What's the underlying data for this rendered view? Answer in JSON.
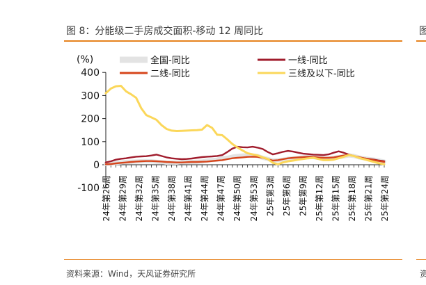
{
  "title": "图 8：分能级二手房成交面积-移动 12 周同比",
  "right_stub": "图",
  "source": "资料来源：Wind，天风证券研究所",
  "right_stub_bottom": "资",
  "colors": {
    "national": "#e3e3e3",
    "tier1": "#a01c2c",
    "tier2": "#d6451b",
    "tier3": "#fbd75a",
    "rule": "#e6821e"
  },
  "chart_data": {
    "type": "line",
    "unit_label": "(%)",
    "ylim": [
      -100,
      400
    ],
    "yticks": [
      -100,
      0,
      100,
      200,
      300,
      400
    ],
    "x_tick_labels": [
      "24年第26周",
      "24年第29周",
      "24年第32周",
      "24年第35周",
      "24年第38周",
      "24年第41周",
      "24年第44周",
      "24年第47周",
      "24年第50周",
      "24年第53周",
      "25年第3周",
      "25年第6周",
      "25年第9周",
      "25年第12周",
      "25年第15周",
      "25年第18周",
      "25年第21周",
      "25年第24周"
    ],
    "legend": [
      {
        "key": "national",
        "label": "全国-同比"
      },
      {
        "key": "tier1",
        "label": "一线-同比"
      },
      {
        "key": "tier2",
        "label": "二线-同比"
      },
      {
        "key": "tier3",
        "label": "三线及以下-同比"
      }
    ],
    "series": [
      {
        "key": "national",
        "name": "全国-同比",
        "color": "#e3e3e3",
        "values": [
          4,
          5,
          8,
          10,
          12,
          13,
          14,
          15,
          16,
          15,
          13,
          11,
          9,
          10,
          9,
          11,
          12,
          12,
          13,
          14,
          18,
          20,
          22,
          28,
          30,
          35,
          38,
          40,
          41,
          40,
          38,
          30,
          25,
          18,
          20,
          22,
          26,
          28,
          30,
          32,
          34,
          33,
          30,
          28,
          28,
          30,
          33,
          36,
          40,
          38,
          32,
          28,
          25,
          22,
          18,
          14
        ]
      },
      {
        "key": "tier1",
        "name": "一线-同比",
        "color": "#a01c2c",
        "values": [
          10,
          15,
          22,
          26,
          28,
          32,
          35,
          36,
          37,
          40,
          44,
          38,
          32,
          28,
          26,
          24,
          25,
          27,
          30,
          33,
          35,
          36,
          38,
          42,
          55,
          70,
          78,
          76,
          75,
          78,
          74,
          68,
          55,
          45,
          50,
          56,
          60,
          57,
          52,
          48,
          46,
          44,
          43,
          42,
          45,
          52,
          58,
          52,
          44,
          38,
          32,
          28,
          25,
          22,
          18,
          15
        ]
      },
      {
        "key": "tier2",
        "name": "二线-同比",
        "color": "#d6451b",
        "values": [
          2,
          3,
          6,
          8,
          10,
          12,
          14,
          15,
          16,
          16,
          15,
          14,
          12,
          11,
          10,
          10,
          11,
          12,
          12,
          13,
          14,
          16,
          18,
          20,
          24,
          28,
          30,
          32,
          34,
          35,
          34,
          30,
          24,
          18,
          20,
          24,
          28,
          30,
          32,
          33,
          35,
          34,
          32,
          30,
          30,
          32,
          36,
          40,
          42,
          38,
          33,
          28,
          24,
          20,
          16,
          12
        ]
      },
      {
        "key": "tier3",
        "name": "三线及以下-同比",
        "color": "#fbd75a",
        "values": [
          310,
          330,
          340,
          342,
          318,
          305,
          290,
          245,
          215,
          205,
          195,
          172,
          155,
          148,
          146,
          147,
          148,
          149,
          150,
          152,
          172,
          160,
          130,
          128,
          110,
          90,
          75,
          62,
          50,
          45,
          40,
          32,
          25,
          8,
          2,
          10,
          15,
          18,
          22,
          25,
          28,
          30,
          25,
          20,
          20,
          22,
          28,
          35,
          42,
          38,
          30,
          24,
          18,
          12,
          6,
          2
        ]
      }
    ]
  }
}
